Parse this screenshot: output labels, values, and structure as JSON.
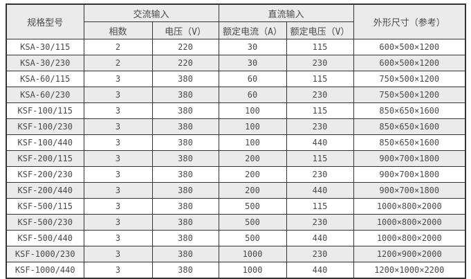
{
  "colors": {
    "border": "#333333",
    "header_background": "#ebebeb",
    "alt_row_background": "#ebebeb",
    "row_background": "#ffffff",
    "text": "#4a4a4a",
    "page_background": "#ffffff"
  },
  "table": {
    "headers": {
      "model": "规格型号",
      "ac_input": "交流输入",
      "phase": "相数",
      "ac_voltage": "电压（V）",
      "dc_input": "直流输入",
      "dc_current": "额定电流（A）",
      "dc_voltage": "额定电压（V）",
      "dimensions": "外形尺寸（参考）"
    },
    "rows": [
      {
        "model": "KSA-30/115",
        "phase": "2",
        "ac_voltage": "220",
        "dc_current": "30",
        "dc_voltage": "115",
        "dimensions": "600×500×1200"
      },
      {
        "model": "KSA-30/230",
        "phase": "2",
        "ac_voltage": "220",
        "dc_current": "30",
        "dc_voltage": "230",
        "dimensions": "600×500×1200"
      },
      {
        "model": "KSA-60/115",
        "phase": "3",
        "ac_voltage": "380",
        "dc_current": "60",
        "dc_voltage": "115",
        "dimensions": "750×500×1200"
      },
      {
        "model": "KSA-60/230",
        "phase": "3",
        "ac_voltage": "380",
        "dc_current": "60",
        "dc_voltage": "230",
        "dimensions": "750×500×1200"
      },
      {
        "model": "KSF-100/115",
        "phase": "3",
        "ac_voltage": "380",
        "dc_current": "100",
        "dc_voltage": "115",
        "dimensions": "850×650×1600"
      },
      {
        "model": "KSF-100/230",
        "phase": "3",
        "ac_voltage": "380",
        "dc_current": "100",
        "dc_voltage": "230",
        "dimensions": "850×650×1600"
      },
      {
        "model": "KSF-100/440",
        "phase": "3",
        "ac_voltage": "380",
        "dc_current": "100",
        "dc_voltage": "440",
        "dimensions": "850×650×1600"
      },
      {
        "model": "KSF-200/115",
        "phase": "3",
        "ac_voltage": "380",
        "dc_current": "200",
        "dc_voltage": "115",
        "dimensions": "900×700×1800"
      },
      {
        "model": "KSF-200/230",
        "phase": "3",
        "ac_voltage": "380",
        "dc_current": "200",
        "dc_voltage": "230",
        "dimensions": "900×700×1800"
      },
      {
        "model": "KSF-200/440",
        "phase": "3",
        "ac_voltage": "380",
        "dc_current": "200",
        "dc_voltage": "440",
        "dimensions": "900×700×1800"
      },
      {
        "model": "KSF-500/115",
        "phase": "3",
        "ac_voltage": "380",
        "dc_current": "500",
        "dc_voltage": "115",
        "dimensions": "1000×800×2000"
      },
      {
        "model": "KSF-500/230",
        "phase": "3",
        "ac_voltage": "380",
        "dc_current": "500",
        "dc_voltage": "230",
        "dimensions": "1000×800×2000"
      },
      {
        "model": "KSF-500/440",
        "phase": "3",
        "ac_voltage": "380",
        "dc_current": "500",
        "dc_voltage": "440",
        "dimensions": "1000×800×2000"
      },
      {
        "model": "KSF-1000/230",
        "phase": "3",
        "ac_voltage": "380",
        "dc_current": "1000",
        "dc_voltage": "230",
        "dimensions": "1200×900×2000"
      },
      {
        "model": "KSF-1000/440",
        "phase": "3",
        "ac_voltage": "380",
        "dc_current": "1000",
        "dc_voltage": "440",
        "dimensions": "1200×1000×2200"
      }
    ]
  }
}
